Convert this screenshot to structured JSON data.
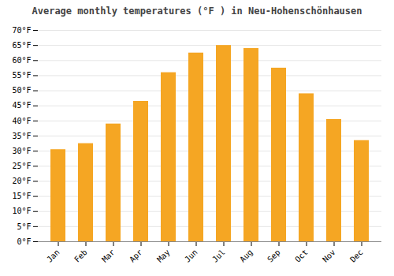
{
  "chart_data": {
    "type": "bar",
    "title": "Average monthly temperatures (°F ) in Neu-Hohenschönhausen",
    "categories": [
      "Jan",
      "Feb",
      "Mar",
      "Apr",
      "May",
      "Jun",
      "Jul",
      "Aug",
      "Sep",
      "Oct",
      "Nov",
      "Dec"
    ],
    "values": [
      30.5,
      32.5,
      39.0,
      46.5,
      56.0,
      62.5,
      65.0,
      64.0,
      57.5,
      49.0,
      40.5,
      33.5
    ],
    "color": "#F5A623",
    "ylim": [
      0,
      70
    ],
    "yticks": [
      {
        "value": 0,
        "label": "0°F"
      },
      {
        "value": 5,
        "label": "5°F"
      },
      {
        "value": 10,
        "label": "10°F"
      },
      {
        "value": 15,
        "label": "15°F"
      },
      {
        "value": 20,
        "label": "20°F"
      },
      {
        "value": 25,
        "label": "25°F"
      },
      {
        "value": 30,
        "label": "30°F"
      },
      {
        "value": 35,
        "label": "35°F"
      },
      {
        "value": 40,
        "label": "40°F"
      },
      {
        "value": 45,
        "label": "45°F"
      },
      {
        "value": 50,
        "label": "50°F"
      },
      {
        "value": 55,
        "label": "55°F"
      },
      {
        "value": 60,
        "label": "60°F"
      },
      {
        "value": 65,
        "label": "65°F"
      },
      {
        "value": 70,
        "label": "70°F"
      }
    ],
    "grid": true
  }
}
